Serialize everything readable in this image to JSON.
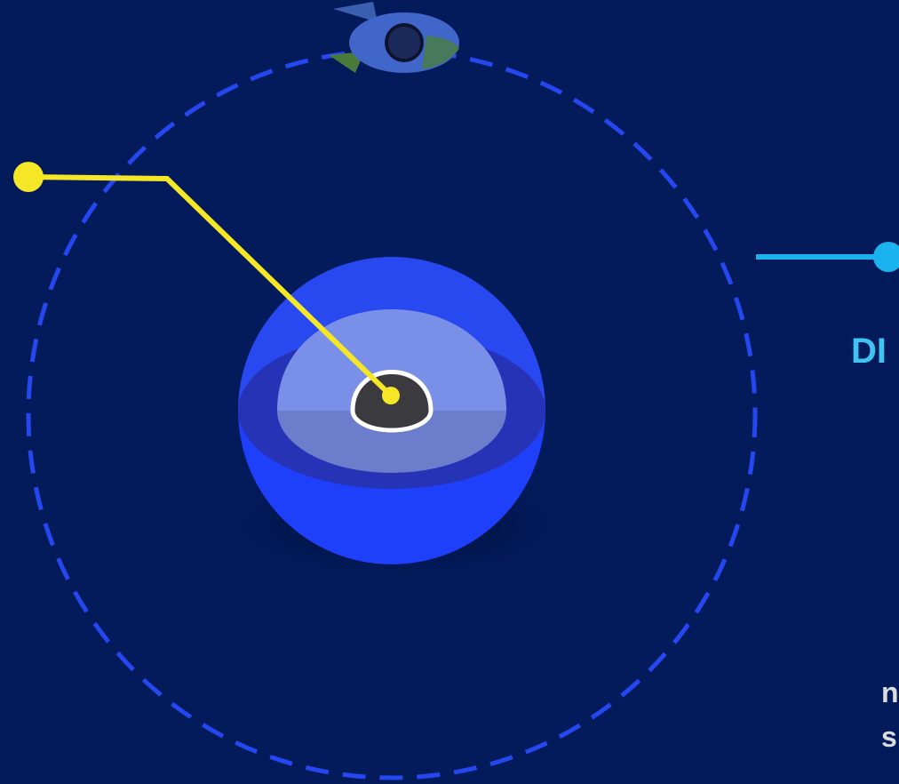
{
  "label": {
    "heading": "DI",
    "lines": [
      "n",
      "s"
    ]
  }
}
